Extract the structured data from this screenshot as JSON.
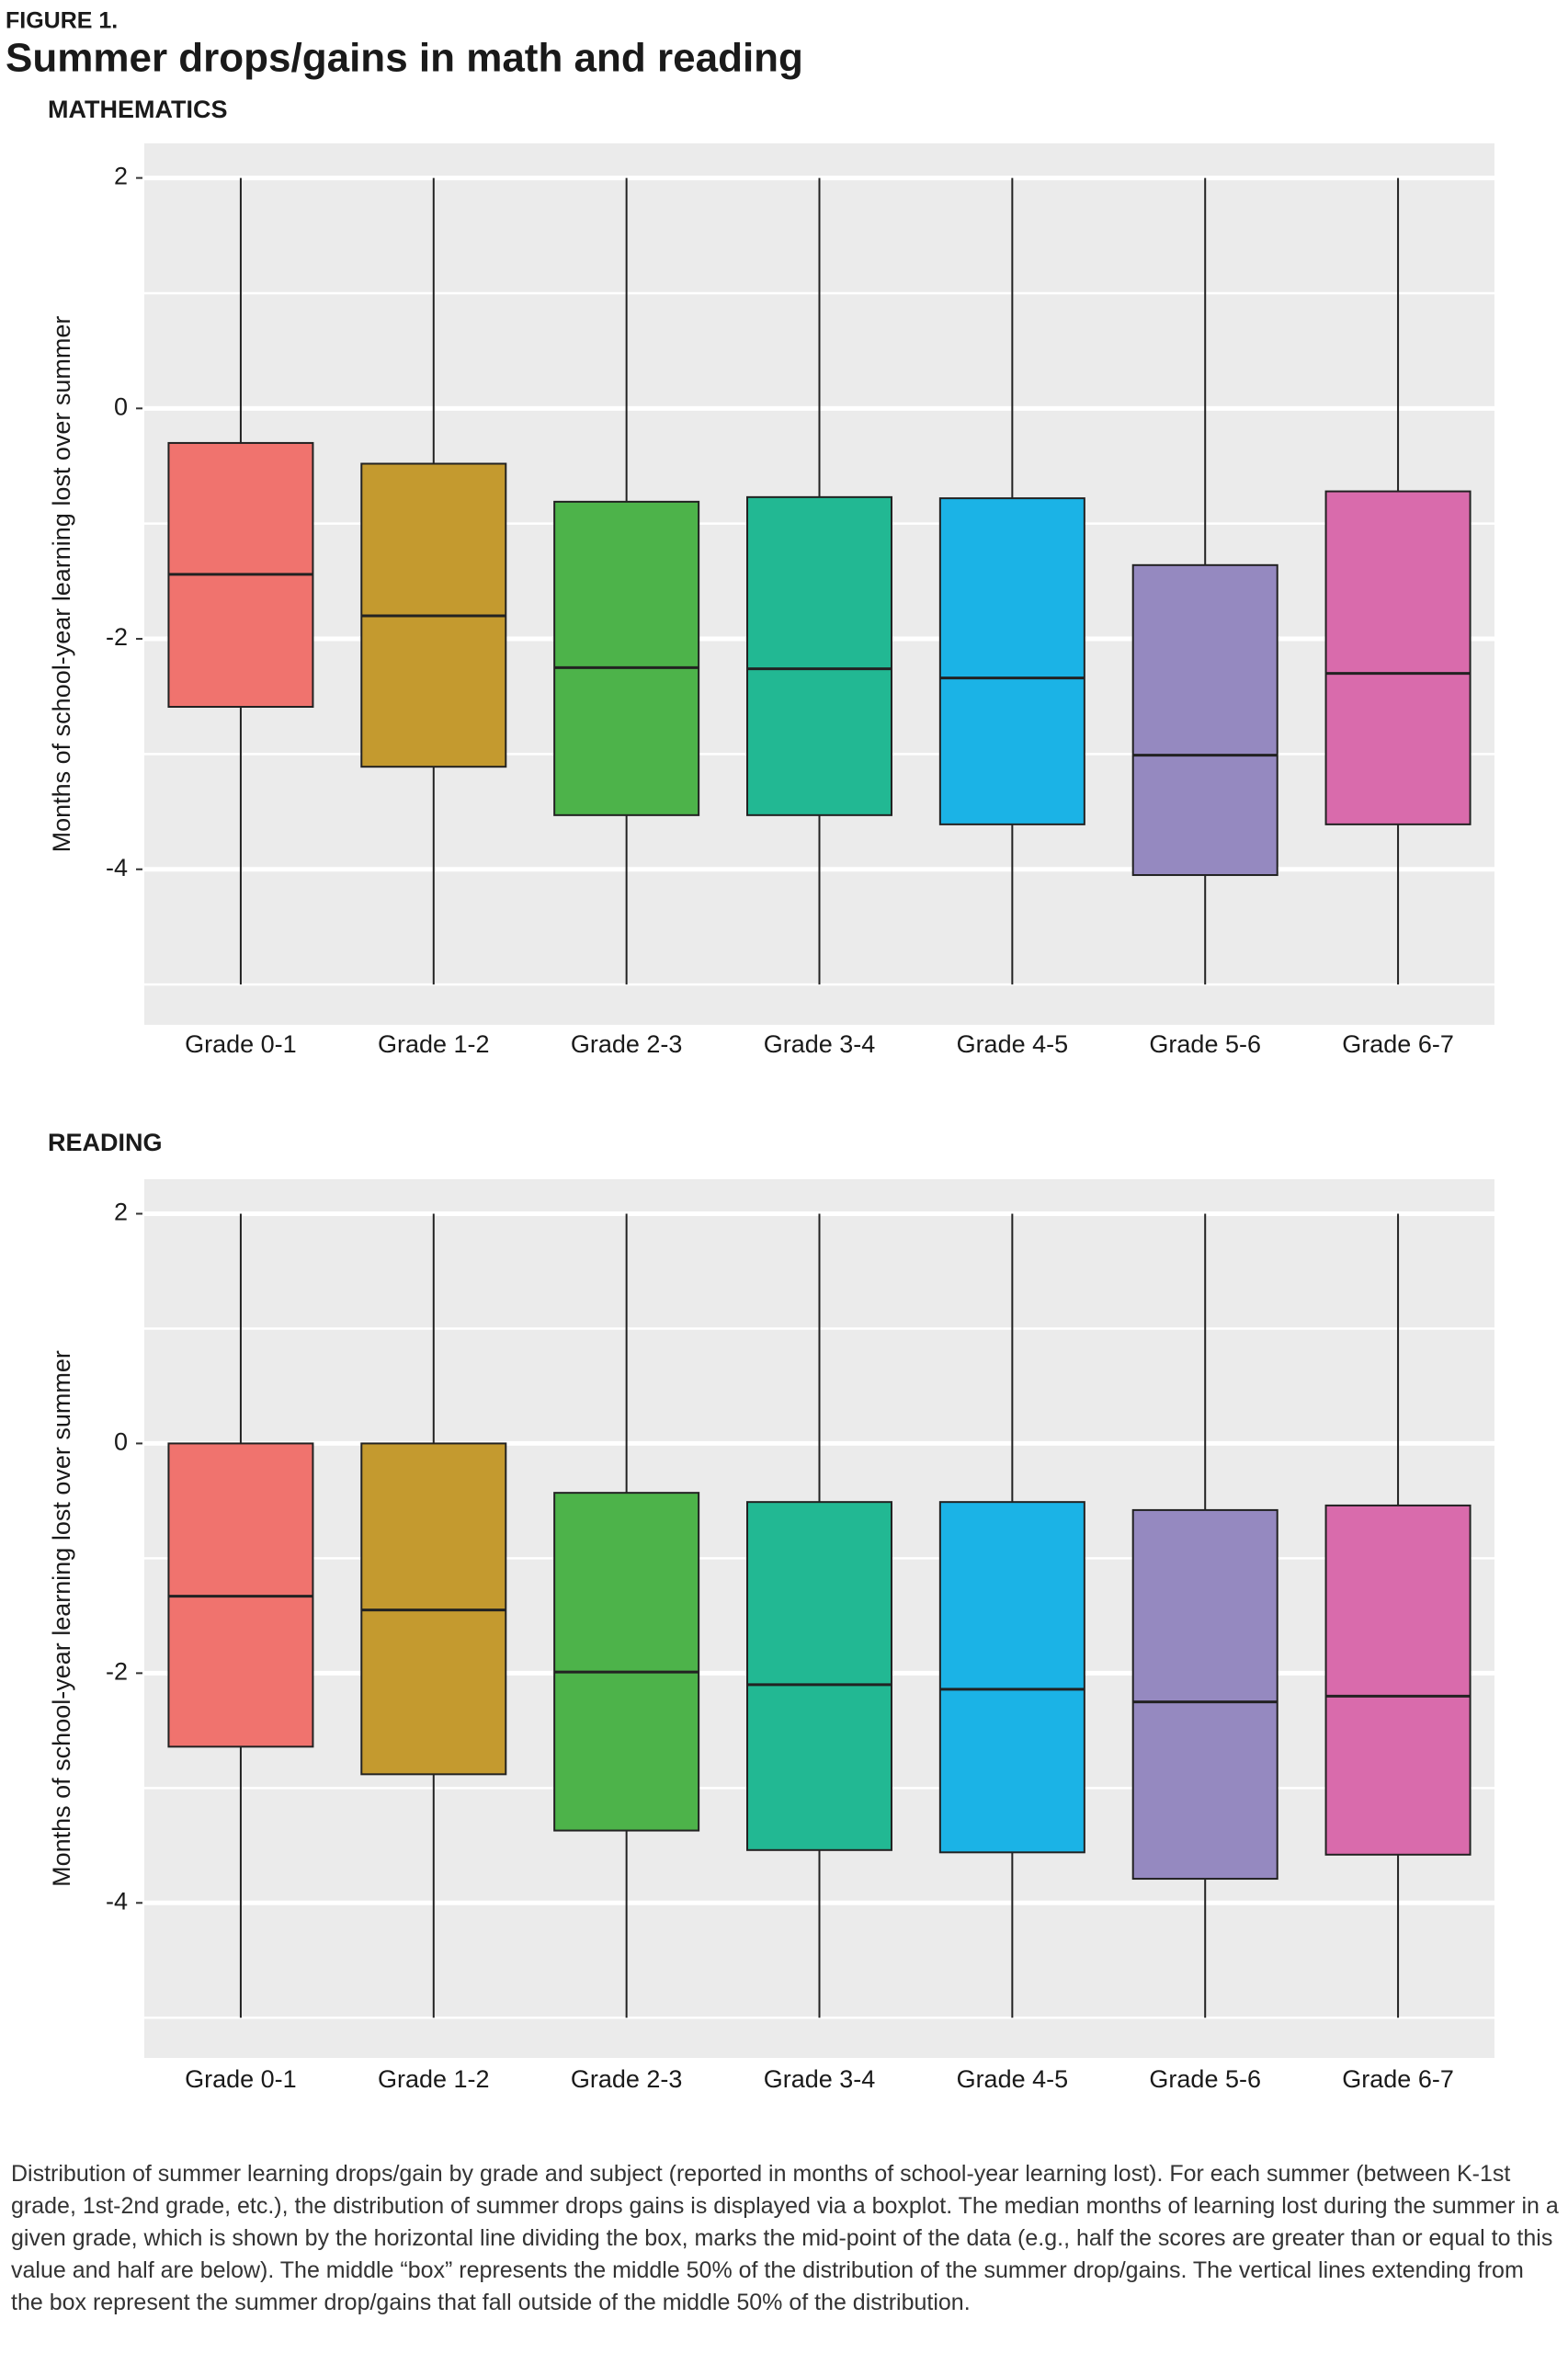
{
  "figure_label": "FIGURE 1.",
  "title": "Summer drops/gains in math and reading",
  "caption": "Distribution of summer learning drops/gain by grade and subject (reported in months of school-year learning lost). For each summer (between K-1st grade, 1st-2nd grade, etc.), the distribution of summer drops gains is displayed via a boxplot. The median months of learning lost during the summer in a given grade, which is shown by the horizontal line dividing the box, marks the mid-point of the data (e.g., half the scores are greater than or equal to this value and half are below). The middle “box” represents the middle 50% of the distribution of the summer drop/gains. The vertical lines extending from the box represent the summer drop/gains that fall outside of the middle 50% of the distribution.",
  "chart_data": [
    {
      "type": "box",
      "title": "MATHEMATICS",
      "y_label": "Months of school-year learning lost over summer",
      "categories": [
        "Grade 0-1",
        "Grade 1-2",
        "Grade 2-3",
        "Grade 3-4",
        "Grade 4-5",
        "Grade 5-6",
        "Grade 6-7"
      ],
      "colors": [
        "#F0736E",
        "#C49A2F",
        "#4DB34A",
        "#22B893",
        "#1BB3E6",
        "#9589C0",
        "#D96BAC"
      ],
      "boxes": [
        {
          "low": -5,
          "q1": -2.59,
          "median": -1.44,
          "q3": -0.3,
          "high": 2
        },
        {
          "low": -5,
          "q1": -3.11,
          "median": -1.8,
          "q3": -0.48,
          "high": 2
        },
        {
          "low": -5,
          "q1": -3.53,
          "median": -2.25,
          "q3": -0.81,
          "high": 2
        },
        {
          "low": -5,
          "q1": -3.53,
          "median": -2.26,
          "q3": -0.77,
          "high": 2
        },
        {
          "low": -5,
          "q1": -3.61,
          "median": -2.34,
          "q3": -0.78,
          "high": 2
        },
        {
          "low": -5,
          "q1": -4.05,
          "median": -3.01,
          "q3": -1.36,
          "high": 2
        },
        {
          "low": -5,
          "q1": -3.61,
          "median": -2.3,
          "q3": -0.72,
          "high": 2
        }
      ],
      "ylim": [
        -5.35,
        2.3
      ],
      "yticks": [
        -4,
        -2,
        0,
        2
      ],
      "grid": true,
      "minor_grid": true
    },
    {
      "type": "box",
      "title": "READING",
      "y_label": "Months of school-year learning lost over summer",
      "categories": [
        "Grade 0-1",
        "Grade 1-2",
        "Grade 2-3",
        "Grade 3-4",
        "Grade 4-5",
        "Grade 5-6",
        "Grade 6-7"
      ],
      "colors": [
        "#F0736E",
        "#C49A2F",
        "#4DB34A",
        "#22B893",
        "#1BB3E6",
        "#9589C0",
        "#D96BAC"
      ],
      "boxes": [
        {
          "low": -5,
          "q1": -2.64,
          "median": -1.33,
          "q3": 0,
          "high": 2
        },
        {
          "low": -5,
          "q1": -2.88,
          "median": -1.45,
          "q3": 0,
          "high": 2
        },
        {
          "low": -5,
          "q1": -3.37,
          "median": -1.99,
          "q3": -0.43,
          "high": 2
        },
        {
          "low": -5,
          "q1": -3.54,
          "median": -2.1,
          "q3": -0.51,
          "high": 2
        },
        {
          "low": -5,
          "q1": -3.56,
          "median": -2.14,
          "q3": -0.51,
          "high": 2
        },
        {
          "low": -5,
          "q1": -3.79,
          "median": -2.25,
          "q3": -0.58,
          "high": 2
        },
        {
          "low": -5,
          "q1": -3.58,
          "median": -2.2,
          "q3": -0.54,
          "high": 2
        }
      ],
      "ylim": [
        -5.35,
        2.3
      ],
      "yticks": [
        -4,
        -2,
        0,
        2
      ],
      "grid": true,
      "minor_grid": true
    }
  ]
}
